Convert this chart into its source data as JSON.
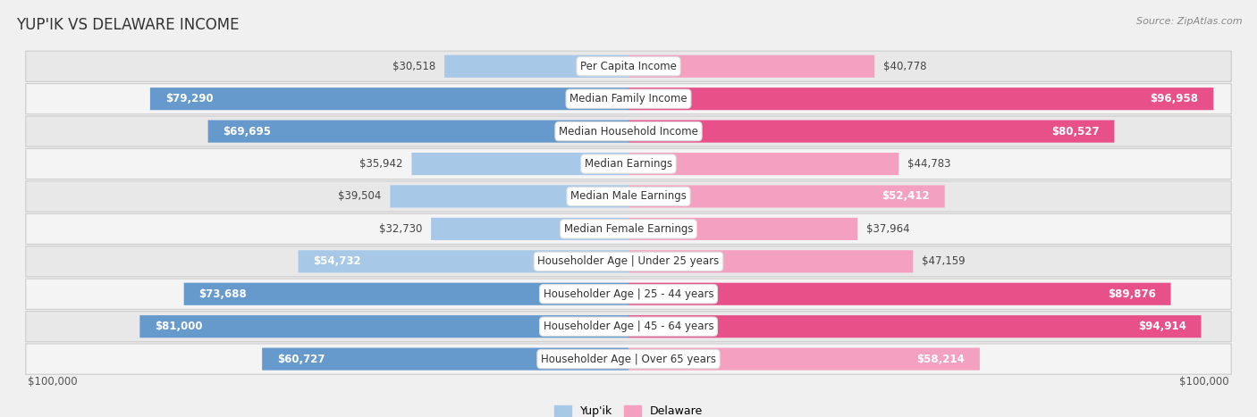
{
  "title": "Yup'ik vs Delaware Income",
  "source": "Source: ZipAtlas.com",
  "categories": [
    "Per Capita Income",
    "Median Family Income",
    "Median Household Income",
    "Median Earnings",
    "Median Male Earnings",
    "Median Female Earnings",
    "Householder Age | Under 25 years",
    "Householder Age | 25 - 44 years",
    "Householder Age | 45 - 64 years",
    "Householder Age | Over 65 years"
  ],
  "yupik_values": [
    30518,
    79290,
    69695,
    35942,
    39504,
    32730,
    54732,
    73688,
    81000,
    60727
  ],
  "delaware_values": [
    40778,
    96958,
    80527,
    44783,
    52412,
    37964,
    47159,
    89876,
    94914,
    58214
  ],
  "max_value": 100000,
  "yupik_color_light": "#a8c8e8",
  "yupik_color_dark": "#6699cc",
  "delaware_color_light": "#f4a0c0",
  "delaware_color_dark": "#e8508a",
  "yupik_label": "Yup'ik",
  "delaware_label": "Delaware",
  "row_color_odd": "#e8e8e8",
  "row_color_even": "#f4f4f4",
  "bg_color": "#f0f0f0",
  "title_color": "#333333",
  "value_fontsize": 8.5,
  "category_fontsize": 8.5,
  "title_fontsize": 12,
  "inside_label_threshold": 50000
}
